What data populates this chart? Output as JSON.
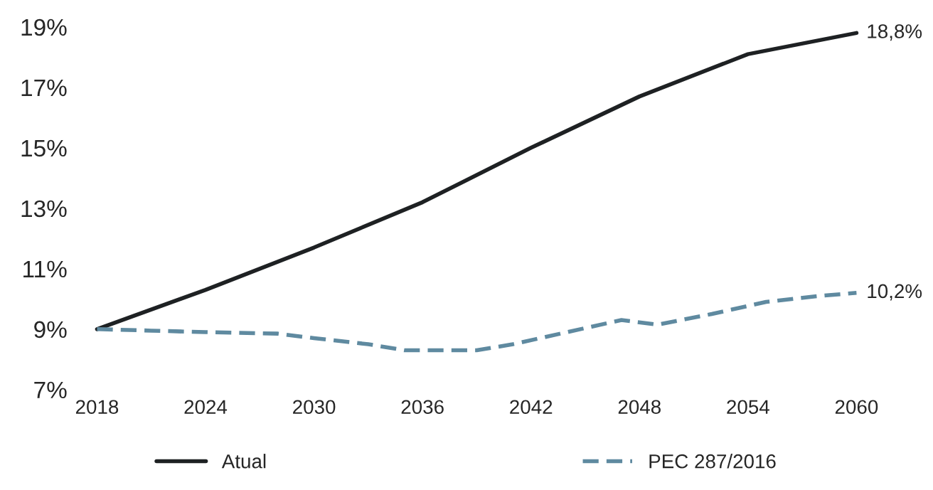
{
  "chart_data": {
    "type": "line",
    "x": [
      2018,
      2024,
      2030,
      2036,
      2042,
      2048,
      2054,
      2060
    ],
    "series": [
      {
        "name": "Atual",
        "color": "#1e2123",
        "line_style": "solid",
        "values": [
          9.0,
          10.3,
          11.7,
          13.2,
          15.0,
          16.7,
          18.1,
          18.8
        ]
      },
      {
        "name": "PEC 287/2016",
        "color": "#5f8aa0",
        "line_style": "dashed",
        "x": [
          2018,
          2021,
          2024,
          2028,
          2030,
          2033,
          2035,
          2039,
          2041,
          2044,
          2047,
          2049,
          2052,
          2055,
          2058,
          2060
        ],
        "values": [
          9.0,
          8.95,
          8.9,
          8.85,
          8.7,
          8.5,
          8.3,
          8.3,
          8.5,
          8.9,
          9.3,
          9.15,
          9.5,
          9.9,
          10.1,
          10.2
        ]
      }
    ],
    "xlim": [
      2018,
      2060
    ],
    "xticks": [
      2018,
      2024,
      2030,
      2036,
      2042,
      2048,
      2054,
      2060
    ],
    "ylim": [
      7,
      19
    ],
    "yticks": [
      {
        "value": 7,
        "label": "7%"
      },
      {
        "value": 9,
        "label": "9%"
      },
      {
        "value": 11,
        "label": "11%"
      },
      {
        "value": 13,
        "label": "13%"
      },
      {
        "value": 15,
        "label": "15%"
      },
      {
        "value": 17,
        "label": "17%"
      },
      {
        "value": 19,
        "label": "19%"
      }
    ],
    "annotations": [
      {
        "text": "18,8%",
        "x": 2060,
        "y": 18.8
      },
      {
        "text": "10,2%",
        "x": 2060,
        "y": 10.2
      }
    ],
    "grid": false,
    "legend": "bottom",
    "marker": "none"
  }
}
